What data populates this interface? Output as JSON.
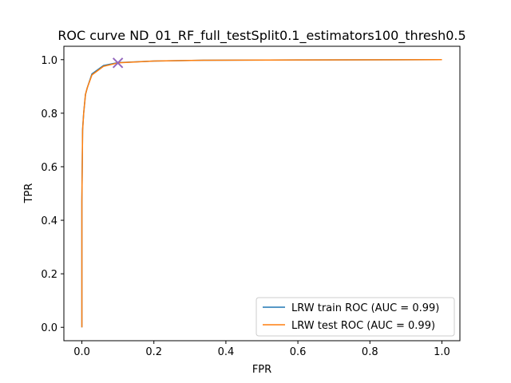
{
  "chart_data": {
    "type": "line",
    "title": "ROC curve ND_01_RF_full_testSplit0.1_estimators100_thresh0.5",
    "xlabel": "FPR",
    "ylabel": "TPR",
    "xlim": [
      -0.05,
      1.05
    ],
    "ylim": [
      -0.05,
      1.05
    ],
    "xticks": [
      "0.0",
      "0.2",
      "0.4",
      "0.6",
      "0.8",
      "1.0"
    ],
    "yticks": [
      "0.0",
      "0.2",
      "0.4",
      "0.6",
      "0.8",
      "1.0"
    ],
    "grid": false,
    "legend_position": "lower-right",
    "series": [
      {
        "name": "LRW train ROC (AUC = 0.99)",
        "color": "#1f77b4",
        "x": [
          0.0,
          0.0,
          0.002,
          0.005,
          0.01,
          0.015,
          0.028,
          0.06,
          0.1,
          0.2,
          0.35,
          0.6,
          1.0
        ],
        "y": [
          0.0,
          0.47,
          0.74,
          0.8,
          0.87,
          0.895,
          0.947,
          0.978,
          0.989,
          0.995,
          0.998,
          0.999,
          1.0
        ]
      },
      {
        "name": "LRW test ROC (AUC = 0.99)",
        "color": "#ff7f0e",
        "x": [
          0.0,
          0.0,
          0.002,
          0.005,
          0.01,
          0.015,
          0.028,
          0.06,
          0.1,
          0.2,
          0.35,
          0.6,
          1.0
        ],
        "y": [
          0.0,
          0.47,
          0.735,
          0.8,
          0.87,
          0.895,
          0.943,
          0.975,
          0.988,
          0.995,
          0.998,
          0.999,
          1.0
        ]
      }
    ],
    "threshold_marker": {
      "x": 0.1,
      "y": 0.988,
      "symbol": "x",
      "color": "#9467bd"
    }
  }
}
